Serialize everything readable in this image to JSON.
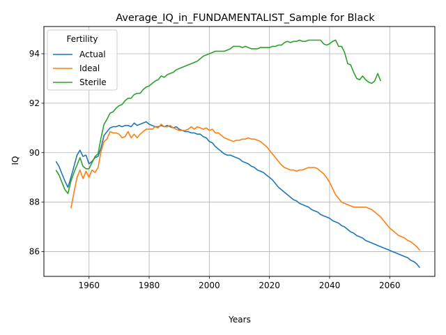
{
  "chart_data": {
    "type": "line",
    "title": "Average_IQ_in_FUNDAMENTALIST_Sample for Black",
    "xlabel": "Years",
    "ylabel": "IQ",
    "xlim": [
      1945,
      2075
    ],
    "ylim": [
      85,
      95.1
    ],
    "xticks": [
      1960,
      1980,
      2000,
      2020,
      2040,
      2060
    ],
    "yticks": [
      86,
      88,
      90,
      92,
      94
    ],
    "grid": true,
    "legend": {
      "title": "Fertility",
      "position": "upper-left"
    },
    "series": [
      {
        "name": "Actual",
        "color": "#1f77b4",
        "x": [
          1949,
          1950,
          1951,
          1952,
          1953,
          1954,
          1955,
          1956,
          1957,
          1958,
          1959,
          1960,
          1961,
          1962,
          1963,
          1964,
          1965,
          1966,
          1967,
          1968,
          1969,
          1970,
          1971,
          1972,
          1973,
          1974,
          1975,
          1976,
          1977,
          1978,
          1979,
          1980,
          1981,
          1982,
          1983,
          1984,
          1985,
          1986,
          1987,
          1988,
          1989,
          1990,
          1991,
          1992,
          1993,
          1994,
          1995,
          1996,
          1997,
          1998,
          1999,
          2000,
          2001,
          2002,
          2003,
          2004,
          2005,
          2006,
          2007,
          2008,
          2009,
          2010,
          2011,
          2012,
          2013,
          2014,
          2015,
          2016,
          2017,
          2018,
          2019,
          2020,
          2021,
          2022,
          2023,
          2024,
          2025,
          2026,
          2027,
          2028,
          2029,
          2030,
          2031,
          2032,
          2033,
          2034,
          2035,
          2036,
          2037,
          2038,
          2039,
          2040,
          2041,
          2042,
          2043,
          2044,
          2045,
          2046,
          2047,
          2048,
          2049,
          2050,
          2051,
          2052,
          2053,
          2054,
          2055,
          2056,
          2057,
          2058,
          2059,
          2060,
          2061,
          2062,
          2063,
          2064,
          2065,
          2066,
          2067,
          2068,
          2069,
          2070
        ],
        "y": [
          89.65,
          89.45,
          89.15,
          88.85,
          88.6,
          89.0,
          89.45,
          89.9,
          90.1,
          89.85,
          89.9,
          89.55,
          89.65,
          89.8,
          89.85,
          90.2,
          90.7,
          90.85,
          91.0,
          91.05,
          91.05,
          91.1,
          91.05,
          91.1,
          91.1,
          91.05,
          91.2,
          91.1,
          91.15,
          91.2,
          91.25,
          91.15,
          91.1,
          91.05,
          91.05,
          91.1,
          91.05,
          91.1,
          91.05,
          91.0,
          91.05,
          90.95,
          90.9,
          90.85,
          90.85,
          90.8,
          90.8,
          90.75,
          90.75,
          90.65,
          90.6,
          90.45,
          90.4,
          90.25,
          90.15,
          90.05,
          89.95,
          89.9,
          89.9,
          89.85,
          89.8,
          89.75,
          89.65,
          89.6,
          89.55,
          89.45,
          89.4,
          89.3,
          89.25,
          89.2,
          89.1,
          89.0,
          88.9,
          88.75,
          88.6,
          88.5,
          88.4,
          88.3,
          88.2,
          88.1,
          88.05,
          87.95,
          87.9,
          87.85,
          87.8,
          87.7,
          87.65,
          87.6,
          87.5,
          87.45,
          87.4,
          87.35,
          87.25,
          87.2,
          87.15,
          87.05,
          87.0,
          86.9,
          86.8,
          86.75,
          86.65,
          86.6,
          86.55,
          86.45,
          86.4,
          86.35,
          86.3,
          86.25,
          86.2,
          86.15,
          86.1,
          86.05,
          86.0,
          85.95,
          85.9,
          85.85,
          85.8,
          85.75,
          85.65,
          85.6,
          85.5,
          85.35
        ]
      },
      {
        "name": "Ideal",
        "color": "#ff7f0e",
        "x": [
          1954,
          1955,
          1956,
          1957,
          1958,
          1959,
          1960,
          1961,
          1962,
          1963,
          1964,
          1965,
          1966,
          1967,
          1968,
          1969,
          1970,
          1971,
          1972,
          1973,
          1974,
          1975,
          1976,
          1977,
          1978,
          1979,
          1980,
          1981,
          1982,
          1983,
          1984,
          1985,
          1986,
          1987,
          1988,
          1989,
          1990,
          1991,
          1992,
          1993,
          1994,
          1995,
          1996,
          1997,
          1998,
          1999,
          2000,
          2001,
          2002,
          2003,
          2004,
          2005,
          2006,
          2007,
          2008,
          2009,
          2010,
          2011,
          2012,
          2013,
          2014,
          2015,
          2016,
          2017,
          2018,
          2019,
          2020,
          2021,
          2022,
          2023,
          2024,
          2025,
          2026,
          2027,
          2028,
          2029,
          2030,
          2031,
          2032,
          2033,
          2034,
          2035,
          2036,
          2037,
          2038,
          2039,
          2040,
          2041,
          2042,
          2043,
          2044,
          2045,
          2046,
          2047,
          2048,
          2049,
          2050,
          2051,
          2052,
          2053,
          2054,
          2055,
          2056,
          2057,
          2058,
          2059,
          2060,
          2061,
          2062,
          2063,
          2064,
          2065,
          2066,
          2067,
          2068,
          2069,
          2070
        ],
        "y": [
          87.75,
          88.4,
          89.0,
          89.3,
          88.95,
          89.25,
          89.0,
          89.3,
          89.2,
          89.4,
          90.05,
          90.45,
          90.55,
          90.85,
          90.8,
          90.8,
          90.75,
          90.6,
          90.65,
          90.85,
          90.6,
          90.75,
          90.6,
          90.75,
          90.85,
          90.95,
          90.95,
          90.95,
          91.05,
          91.0,
          91.15,
          91.05,
          91.05,
          91.1,
          91.0,
          90.95,
          90.9,
          90.9,
          90.9,
          90.95,
          91.05,
          90.95,
          91.05,
          91.0,
          90.95,
          91.0,
          90.9,
          90.95,
          90.8,
          90.8,
          90.7,
          90.6,
          90.55,
          90.5,
          90.45,
          90.5,
          90.5,
          90.55,
          90.55,
          90.6,
          90.55,
          90.55,
          90.5,
          90.45,
          90.35,
          90.25,
          90.1,
          89.95,
          89.8,
          89.65,
          89.5,
          89.4,
          89.35,
          89.3,
          89.3,
          89.25,
          89.3,
          89.3,
          89.35,
          89.4,
          89.4,
          89.4,
          89.35,
          89.25,
          89.15,
          89.0,
          88.8,
          88.55,
          88.3,
          88.15,
          88.0,
          87.95,
          87.9,
          87.85,
          87.8,
          87.8,
          87.8,
          87.8,
          87.8,
          87.75,
          87.7,
          87.6,
          87.5,
          87.4,
          87.25,
          87.1,
          86.95,
          86.85,
          86.75,
          86.65,
          86.6,
          86.55,
          86.45,
          86.4,
          86.3,
          86.2,
          86.05
        ]
      },
      {
        "name": "Sterile",
        "color": "#2ca02c",
        "x": [
          1949,
          1950,
          1951,
          1952,
          1953,
          1954,
          1955,
          1956,
          1957,
          1958,
          1959,
          1960,
          1961,
          1962,
          1963,
          1964,
          1965,
          1966,
          1967,
          1968,
          1969,
          1970,
          1971,
          1972,
          1973,
          1974,
          1975,
          1976,
          1977,
          1978,
          1979,
          1980,
          1981,
          1982,
          1983,
          1984,
          1985,
          1986,
          1987,
          1988,
          1989,
          1990,
          1991,
          1992,
          1993,
          1994,
          1995,
          1996,
          1997,
          1998,
          1999,
          2000,
          2001,
          2002,
          2003,
          2004,
          2005,
          2006,
          2007,
          2008,
          2009,
          2010,
          2011,
          2012,
          2013,
          2014,
          2015,
          2016,
          2017,
          2018,
          2019,
          2020,
          2021,
          2022,
          2023,
          2024,
          2025,
          2026,
          2027,
          2028,
          2029,
          2030,
          2031,
          2032,
          2033,
          2034,
          2035,
          2036,
          2037,
          2038,
          2039,
          2040,
          2041,
          2042,
          2043,
          2044,
          2045,
          2046,
          2047,
          2048,
          2049,
          2050,
          2051,
          2052,
          2053,
          2054,
          2055,
          2056,
          2057
        ],
        "y": [
          89.3,
          89.1,
          88.8,
          88.5,
          88.35,
          88.85,
          89.2,
          89.5,
          89.8,
          89.45,
          89.35,
          89.35,
          89.6,
          89.85,
          89.95,
          90.6,
          91.15,
          91.35,
          91.6,
          91.65,
          91.8,
          91.9,
          91.95,
          92.1,
          92.2,
          92.2,
          92.35,
          92.4,
          92.4,
          92.55,
          92.65,
          92.7,
          92.8,
          92.9,
          92.95,
          93.1,
          93.05,
          93.15,
          93.2,
          93.25,
          93.35,
          93.4,
          93.45,
          93.5,
          93.55,
          93.6,
          93.65,
          93.7,
          93.8,
          93.9,
          93.95,
          94.0,
          94.05,
          94.1,
          94.1,
          94.1,
          94.1,
          94.15,
          94.2,
          94.3,
          94.3,
          94.3,
          94.25,
          94.3,
          94.25,
          94.2,
          94.2,
          94.2,
          94.25,
          94.25,
          94.25,
          94.25,
          94.3,
          94.3,
          94.35,
          94.35,
          94.45,
          94.5,
          94.45,
          94.5,
          94.5,
          94.55,
          94.5,
          94.5,
          94.55,
          94.55,
          94.55,
          94.55,
          94.55,
          94.4,
          94.35,
          94.4,
          94.5,
          94.55,
          94.3,
          94.3,
          94.05,
          93.6,
          93.55,
          93.25,
          93.0,
          92.95,
          93.1,
          92.95,
          92.85,
          92.8,
          92.9,
          93.2,
          92.9
        ]
      }
    ]
  }
}
